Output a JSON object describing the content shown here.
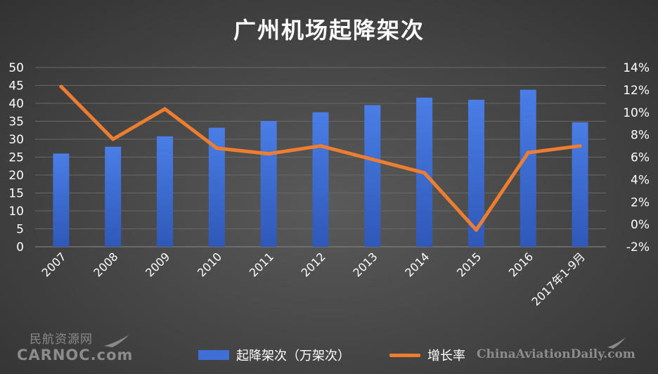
{
  "chart_data": {
    "type": "bar",
    "title": "广州机场起降架次",
    "categories": [
      "2007",
      "2008",
      "2009",
      "2010",
      "2011",
      "2012",
      "2013",
      "2014",
      "2015",
      "2016",
      "2017年1-9月"
    ],
    "series": [
      {
        "name": "起降架次（万架次）",
        "type": "bar",
        "axis": "left",
        "color": "#3f6fd6",
        "values": [
          26.0,
          27.9,
          30.8,
          33.2,
          35.1,
          37.5,
          39.5,
          41.6,
          41.0,
          43.8,
          34.7
        ]
      },
      {
        "name": "增长率",
        "type": "line",
        "axis": "right",
        "color": "#ed7d31",
        "values": [
          12.3,
          7.6,
          10.3,
          6.8,
          6.3,
          7.0,
          5.8,
          4.6,
          -0.5,
          6.4,
          7.0
        ]
      }
    ],
    "y_left": {
      "min": 0,
      "max": 50,
      "ticks": [
        "0",
        "5",
        "10",
        "15",
        "20",
        "25",
        "30",
        "35",
        "40",
        "45",
        "50"
      ]
    },
    "y_right": {
      "min": -2,
      "max": 14,
      "ticks": [
        "-2%",
        "0%",
        "2%",
        "4%",
        "6%",
        "8%",
        "10%",
        "12%",
        "14%"
      ]
    },
    "grid": true,
    "legend_position": "bottom"
  },
  "watermarks": {
    "left_cn": "民航资源网",
    "left_en": "CARNOC.com",
    "right": "ChinaAviationDaily.com"
  },
  "colors": {
    "background": "#444444",
    "gridline": "#6a6a6a",
    "text": "#ffffff",
    "bar": "#3f6fd6",
    "line": "#ed7d31"
  }
}
